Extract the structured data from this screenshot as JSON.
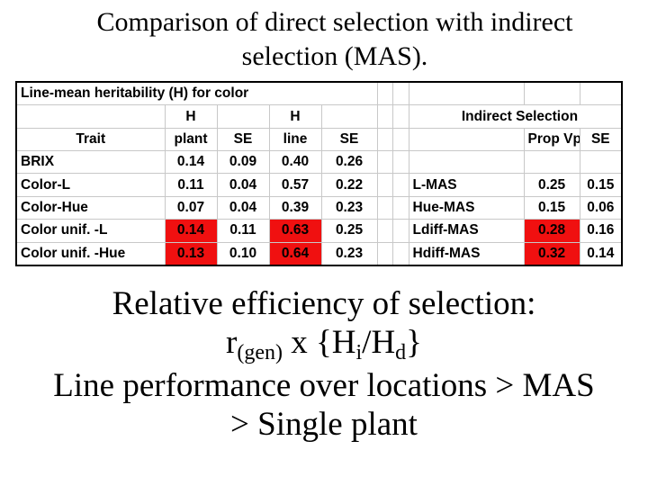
{
  "title": {
    "line1": "Comparison of direct selection with indirect",
    "line2": "selection (MAS)."
  },
  "table": {
    "caption": "Line-mean heritability (H) for color",
    "headers_row1": {
      "h_plant": "H",
      "h_line": "H",
      "indirect": "Indirect Selection"
    },
    "headers_row2": {
      "trait": "Trait",
      "plant": "plant",
      "se1": "SE",
      "line": "line",
      "se2": "SE",
      "prop_vp": "Prop Vp",
      "se3": "SE"
    },
    "rows": [
      {
        "trait": "BRIX",
        "plant": "0.14",
        "se1": "0.09",
        "line": "0.40",
        "se2": "0.26",
        "mas": "",
        "prop_vp": "",
        "se3": ""
      },
      {
        "trait": "Color-L",
        "plant": "0.11",
        "se1": "0.04",
        "line": "0.57",
        "se2": "0.22",
        "mas": "L-MAS",
        "prop_vp": "0.25",
        "se3": "0.15"
      },
      {
        "trait": "Color-Hue",
        "plant": "0.07",
        "se1": "0.04",
        "line": "0.39",
        "se2": "0.23",
        "mas": "Hue-MAS",
        "prop_vp": "0.15",
        "se3": "0.06"
      },
      {
        "trait": "Color unif. -L",
        "plant": "0.14",
        "se1": "0.11",
        "line": "0.63",
        "se2": "0.25",
        "mas": "Ldiff-MAS",
        "prop_vp": "0.28",
        "se3": "0.16"
      },
      {
        "trait": "Color unif. -Hue",
        "plant": "0.13",
        "se1": "0.10",
        "line": "0.64",
        "se2": "0.23",
        "mas": "Hdiff-MAS",
        "prop_vp": "0.32",
        "se3": "0.14"
      }
    ],
    "highlight_color": "#f01010"
  },
  "body": {
    "line1": "Relative efficiency of selection:",
    "line2_r": "r",
    "line2_gen": "(gen)",
    "line2_x": " x {H",
    "line2_i": "i",
    "line2_slash": "/H",
    "line2_d": "d",
    "line2_close": "}",
    "line3": "Line performance over locations > MAS",
    "line4": "> Single plant"
  }
}
